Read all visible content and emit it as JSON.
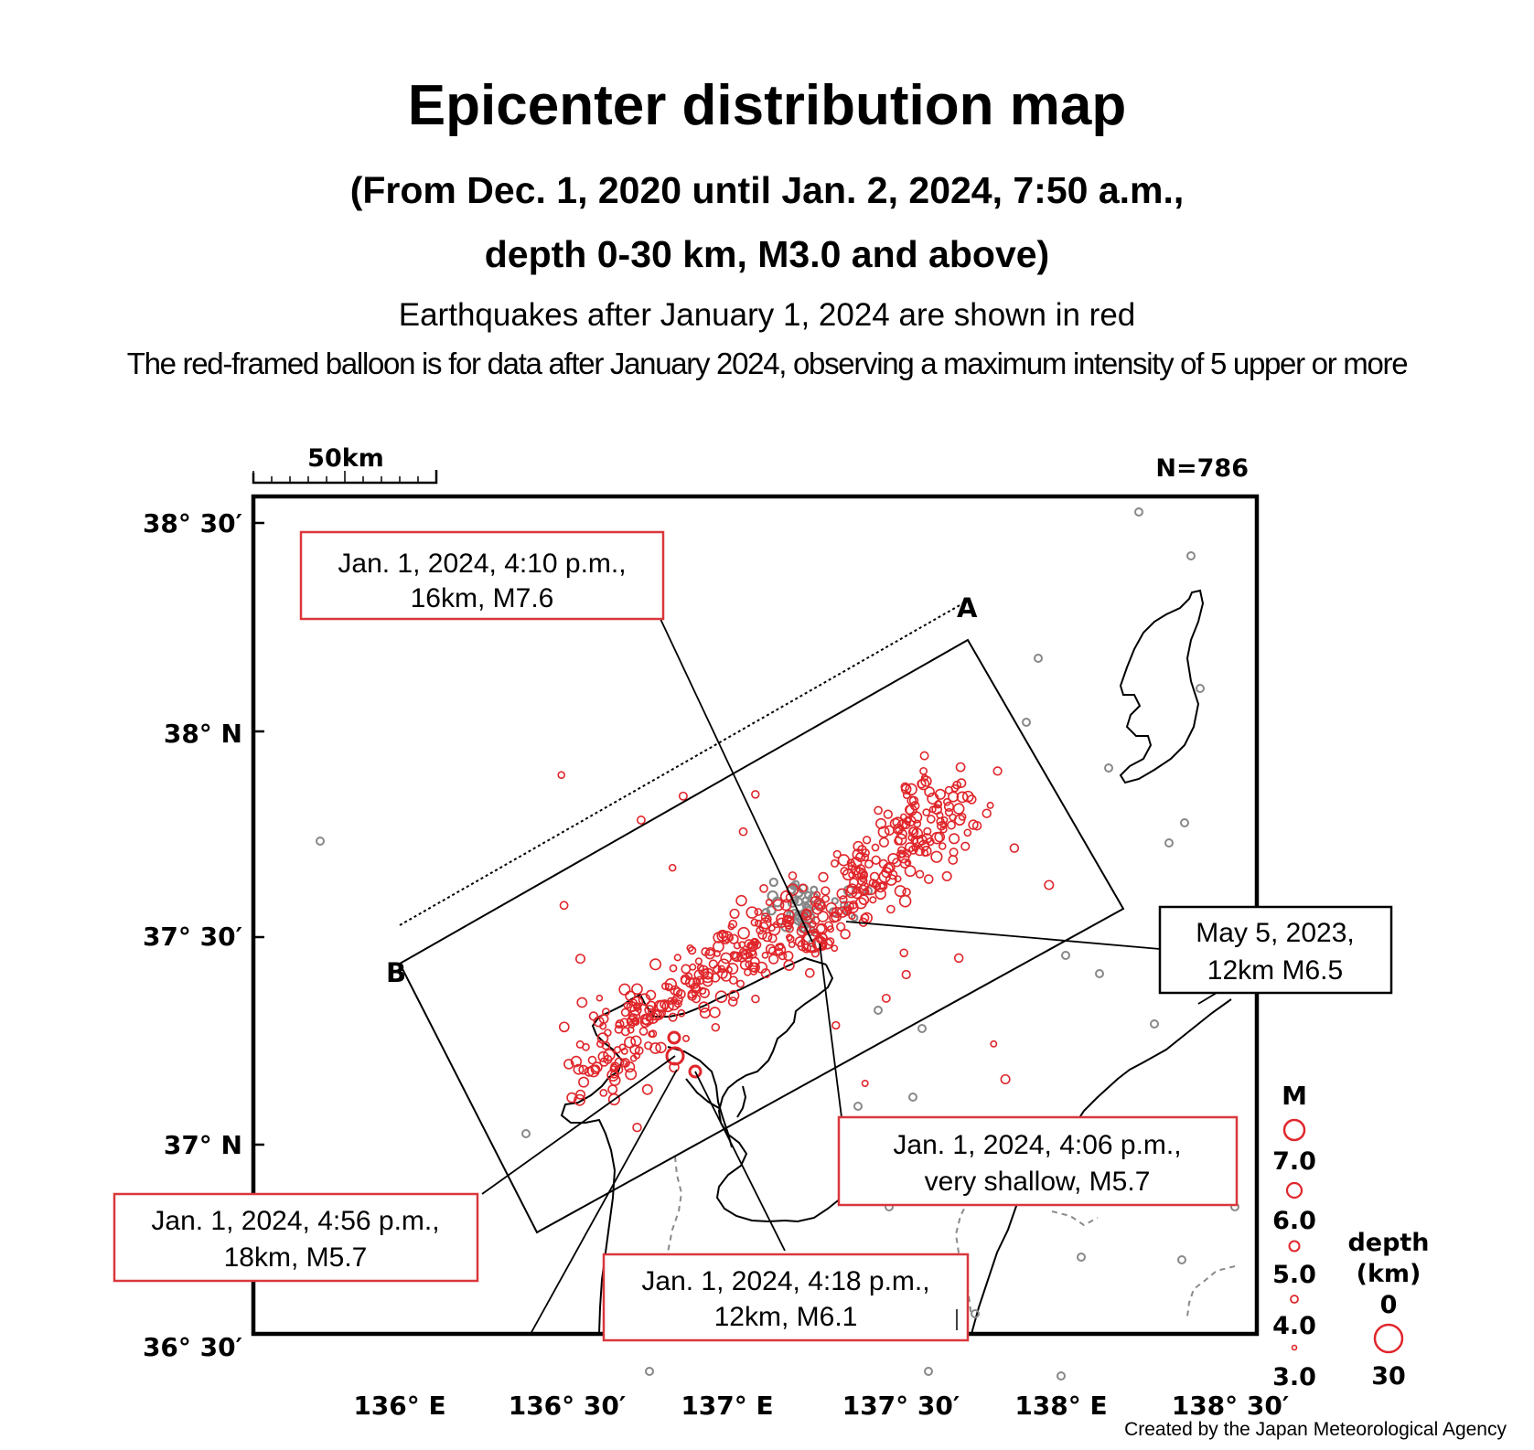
{
  "header": {
    "title": "Epicenter distribution map",
    "subtitle_line1": "(From Dec. 1, 2020 until Jan. 2, 2024, 7:50 a.m.,",
    "subtitle_line2": "depth 0-30 km, M3.0 and above)",
    "note_red": "Earthquakes after January 1, 2024 are shown in red",
    "note_balloon": "The red-framed balloon is for data after January 2024, observing a maximum intensity of 5 upper or more"
  },
  "map": {
    "scale_label": "50km",
    "count_label": "N=786",
    "lat_labels": [
      "38° 30′",
      "38° N",
      "37° 30′",
      "37° N",
      "36° 30′"
    ],
    "lon_labels": [
      "136° E",
      "136° 30′",
      "137° E",
      "137° 30′",
      "138° E",
      "138° 30′"
    ],
    "section_endpoints": [
      "A",
      "B"
    ],
    "colors": {
      "recent": "#e0262b",
      "older": "#888888",
      "frame": "#000000",
      "balloon_border": "#d9373b"
    }
  },
  "callouts": [
    {
      "line1": "Jan. 1, 2024, 4:10 p.m.,",
      "line2": "16km, M7.6",
      "red_frame": true
    },
    {
      "line1": "May 5, 2023,",
      "line2": "12km M6.5",
      "red_frame": false
    },
    {
      "line1": "Jan. 1, 2024, 4:06 p.m.,",
      "line2": "very shallow, M5.7",
      "red_frame": true
    },
    {
      "line1": "Jan. 1, 2024, 4:56 p.m.,",
      "line2": "18km, M5.7",
      "red_frame": true
    },
    {
      "line1": "Jan. 1, 2024, 4:18 p.m.,",
      "line2": "12km, M6.1",
      "red_frame": true
    }
  ],
  "legend": {
    "magnitude_title": "M",
    "magnitude_labels": [
      "7.0",
      "6.0",
      "5.0",
      "4.0",
      "3.0"
    ],
    "depth_title_1": "depth",
    "depth_title_2": "(km)",
    "depth_labels": [
      "0",
      "30"
    ]
  },
  "footer": {
    "credit": "Created by the Japan Meteorological Agency"
  }
}
